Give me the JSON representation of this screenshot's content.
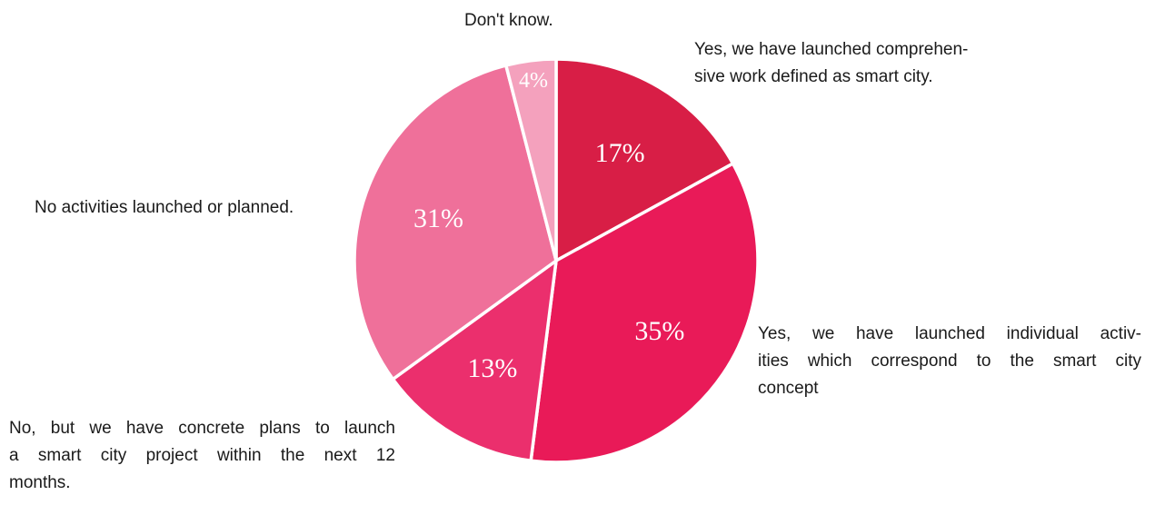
{
  "chart_data": {
    "type": "pie",
    "title": "",
    "start_angle_deg": 0,
    "direction": "clockwise",
    "slices": [
      {
        "label_lines": [
          "Yes, we have launched comprehen-",
          "sive work defined as smart city."
        ],
        "value": 17,
        "value_label": "17%",
        "color": "#d81e46"
      },
      {
        "label_lines": [
          "Yes, we have launched individual activ-",
          "ities which correspond to the smart city",
          "concept"
        ],
        "value": 35,
        "value_label": "35%",
        "color": "#e91a58"
      },
      {
        "label_lines": [
          "No, but we have concrete plans to launch",
          "a smart city project within the next 12",
          "months."
        ],
        "value": 13,
        "value_label": "13%",
        "color": "#eb2f6d"
      },
      {
        "label_lines": [
          "No activities launched or planned."
        ],
        "value": 31,
        "value_label": "31%",
        "color": "#ef709a"
      },
      {
        "label_lines": [
          "Don't know."
        ],
        "value": 4,
        "value_label": "4%",
        "color": "#f4a1bd"
      }
    ]
  }
}
